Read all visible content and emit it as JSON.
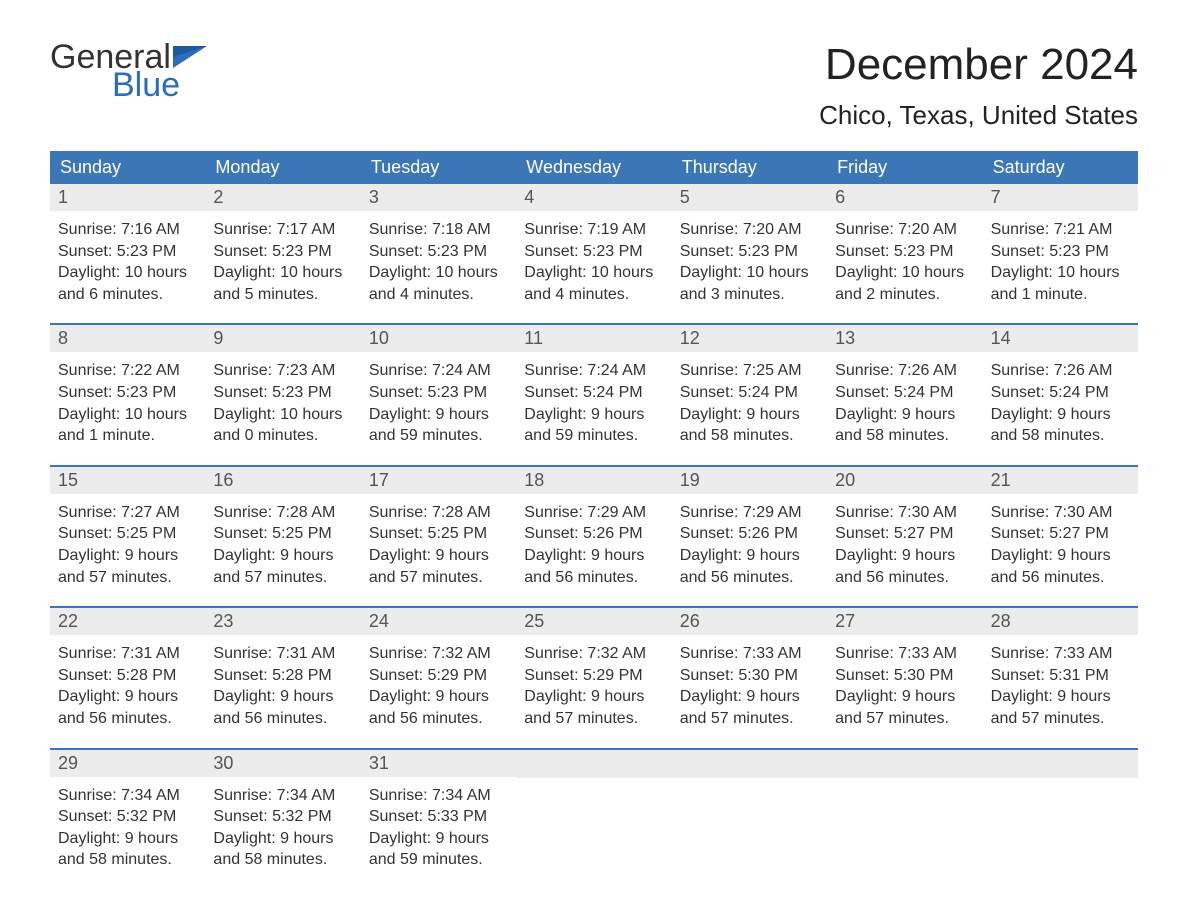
{
  "logo": {
    "word1": "General",
    "word2": "Blue",
    "flag_color": "#2a6ebb"
  },
  "title": {
    "month": "December 2024",
    "location": "Chico, Texas, United States"
  },
  "colors": {
    "header_bg": "#3b77b7",
    "header_text": "#ffffff",
    "daynum_bg": "#ececec",
    "week_border": "#3b77b7",
    "body_text": "#333333"
  },
  "typography": {
    "title_fontsize": 44,
    "location_fontsize": 26,
    "dayheader_fontsize": 18,
    "daynum_fontsize": 18,
    "body_fontsize": 16
  },
  "day_names": [
    "Sunday",
    "Monday",
    "Tuesday",
    "Wednesday",
    "Thursday",
    "Friday",
    "Saturday"
  ],
  "weeks": [
    [
      {
        "n": "1",
        "sunrise": "Sunrise: 7:16 AM",
        "sunset": "Sunset: 5:23 PM",
        "d1": "Daylight: 10 hours",
        "d2": "and 6 minutes."
      },
      {
        "n": "2",
        "sunrise": "Sunrise: 7:17 AM",
        "sunset": "Sunset: 5:23 PM",
        "d1": "Daylight: 10 hours",
        "d2": "and 5 minutes."
      },
      {
        "n": "3",
        "sunrise": "Sunrise: 7:18 AM",
        "sunset": "Sunset: 5:23 PM",
        "d1": "Daylight: 10 hours",
        "d2": "and 4 minutes."
      },
      {
        "n": "4",
        "sunrise": "Sunrise: 7:19 AM",
        "sunset": "Sunset: 5:23 PM",
        "d1": "Daylight: 10 hours",
        "d2": "and 4 minutes."
      },
      {
        "n": "5",
        "sunrise": "Sunrise: 7:20 AM",
        "sunset": "Sunset: 5:23 PM",
        "d1": "Daylight: 10 hours",
        "d2": "and 3 minutes."
      },
      {
        "n": "6",
        "sunrise": "Sunrise: 7:20 AM",
        "sunset": "Sunset: 5:23 PM",
        "d1": "Daylight: 10 hours",
        "d2": "and 2 minutes."
      },
      {
        "n": "7",
        "sunrise": "Sunrise: 7:21 AM",
        "sunset": "Sunset: 5:23 PM",
        "d1": "Daylight: 10 hours",
        "d2": "and 1 minute."
      }
    ],
    [
      {
        "n": "8",
        "sunrise": "Sunrise: 7:22 AM",
        "sunset": "Sunset: 5:23 PM",
        "d1": "Daylight: 10 hours",
        "d2": "and 1 minute."
      },
      {
        "n": "9",
        "sunrise": "Sunrise: 7:23 AM",
        "sunset": "Sunset: 5:23 PM",
        "d1": "Daylight: 10 hours",
        "d2": "and 0 minutes."
      },
      {
        "n": "10",
        "sunrise": "Sunrise: 7:24 AM",
        "sunset": "Sunset: 5:23 PM",
        "d1": "Daylight: 9 hours",
        "d2": "and 59 minutes."
      },
      {
        "n": "11",
        "sunrise": "Sunrise: 7:24 AM",
        "sunset": "Sunset: 5:24 PM",
        "d1": "Daylight: 9 hours",
        "d2": "and 59 minutes."
      },
      {
        "n": "12",
        "sunrise": "Sunrise: 7:25 AM",
        "sunset": "Sunset: 5:24 PM",
        "d1": "Daylight: 9 hours",
        "d2": "and 58 minutes."
      },
      {
        "n": "13",
        "sunrise": "Sunrise: 7:26 AM",
        "sunset": "Sunset: 5:24 PM",
        "d1": "Daylight: 9 hours",
        "d2": "and 58 minutes."
      },
      {
        "n": "14",
        "sunrise": "Sunrise: 7:26 AM",
        "sunset": "Sunset: 5:24 PM",
        "d1": "Daylight: 9 hours",
        "d2": "and 58 minutes."
      }
    ],
    [
      {
        "n": "15",
        "sunrise": "Sunrise: 7:27 AM",
        "sunset": "Sunset: 5:25 PM",
        "d1": "Daylight: 9 hours",
        "d2": "and 57 minutes."
      },
      {
        "n": "16",
        "sunrise": "Sunrise: 7:28 AM",
        "sunset": "Sunset: 5:25 PM",
        "d1": "Daylight: 9 hours",
        "d2": "and 57 minutes."
      },
      {
        "n": "17",
        "sunrise": "Sunrise: 7:28 AM",
        "sunset": "Sunset: 5:25 PM",
        "d1": "Daylight: 9 hours",
        "d2": "and 57 minutes."
      },
      {
        "n": "18",
        "sunrise": "Sunrise: 7:29 AM",
        "sunset": "Sunset: 5:26 PM",
        "d1": "Daylight: 9 hours",
        "d2": "and 56 minutes."
      },
      {
        "n": "19",
        "sunrise": "Sunrise: 7:29 AM",
        "sunset": "Sunset: 5:26 PM",
        "d1": "Daylight: 9 hours",
        "d2": "and 56 minutes."
      },
      {
        "n": "20",
        "sunrise": "Sunrise: 7:30 AM",
        "sunset": "Sunset: 5:27 PM",
        "d1": "Daylight: 9 hours",
        "d2": "and 56 minutes."
      },
      {
        "n": "21",
        "sunrise": "Sunrise: 7:30 AM",
        "sunset": "Sunset: 5:27 PM",
        "d1": "Daylight: 9 hours",
        "d2": "and 56 minutes."
      }
    ],
    [
      {
        "n": "22",
        "sunrise": "Sunrise: 7:31 AM",
        "sunset": "Sunset: 5:28 PM",
        "d1": "Daylight: 9 hours",
        "d2": "and 56 minutes."
      },
      {
        "n": "23",
        "sunrise": "Sunrise: 7:31 AM",
        "sunset": "Sunset: 5:28 PM",
        "d1": "Daylight: 9 hours",
        "d2": "and 56 minutes."
      },
      {
        "n": "24",
        "sunrise": "Sunrise: 7:32 AM",
        "sunset": "Sunset: 5:29 PM",
        "d1": "Daylight: 9 hours",
        "d2": "and 56 minutes."
      },
      {
        "n": "25",
        "sunrise": "Sunrise: 7:32 AM",
        "sunset": "Sunset: 5:29 PM",
        "d1": "Daylight: 9 hours",
        "d2": "and 57 minutes."
      },
      {
        "n": "26",
        "sunrise": "Sunrise: 7:33 AM",
        "sunset": "Sunset: 5:30 PM",
        "d1": "Daylight: 9 hours",
        "d2": "and 57 minutes."
      },
      {
        "n": "27",
        "sunrise": "Sunrise: 7:33 AM",
        "sunset": "Sunset: 5:30 PM",
        "d1": "Daylight: 9 hours",
        "d2": "and 57 minutes."
      },
      {
        "n": "28",
        "sunrise": "Sunrise: 7:33 AM",
        "sunset": "Sunset: 5:31 PM",
        "d1": "Daylight: 9 hours",
        "d2": "and 57 minutes."
      }
    ],
    [
      {
        "n": "29",
        "sunrise": "Sunrise: 7:34 AM",
        "sunset": "Sunset: 5:32 PM",
        "d1": "Daylight: 9 hours",
        "d2": "and 58 minutes."
      },
      {
        "n": "30",
        "sunrise": "Sunrise: 7:34 AM",
        "sunset": "Sunset: 5:32 PM",
        "d1": "Daylight: 9 hours",
        "d2": "and 58 minutes."
      },
      {
        "n": "31",
        "sunrise": "Sunrise: 7:34 AM",
        "sunset": "Sunset: 5:33 PM",
        "d1": "Daylight: 9 hours",
        "d2": "and 59 minutes."
      },
      null,
      null,
      null,
      null
    ]
  ]
}
